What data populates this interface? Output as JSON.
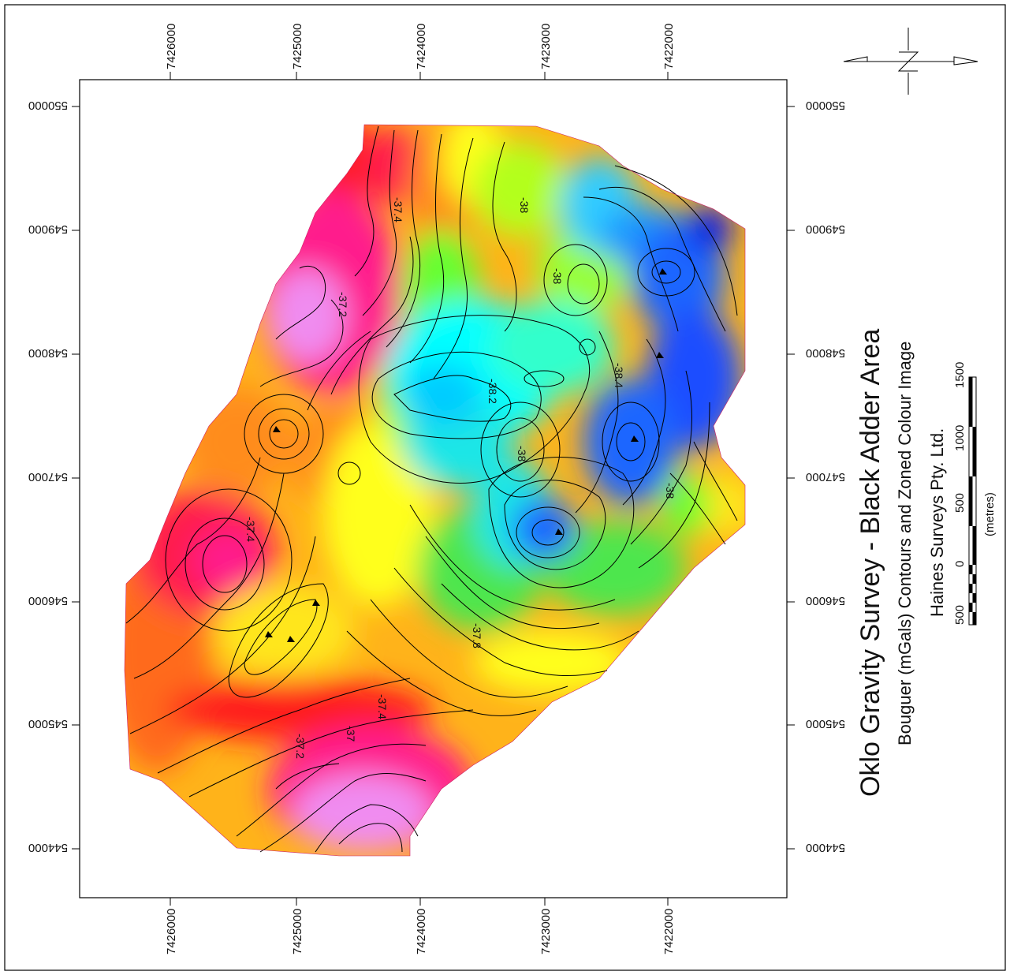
{
  "map": {
    "title": "Oklo Gravity Survey - Black Adder Area",
    "subtitle": "Bouguer (mGals) Contours and Zoned Colour Image",
    "credit": "Haines Surveys Pty. Ltd.",
    "north_symbol": "N",
    "northing_labels": [
      "7426000",
      "7425000",
      "7424000",
      "7423000",
      "7422000"
    ],
    "easting_labels": [
      "550000",
      "549000",
      "548000",
      "547000",
      "546000",
      "545000",
      "544000"
    ],
    "scale_bar": {
      "labels": [
        "500",
        "0",
        "500",
        "1000",
        "1500"
      ],
      "unit": "(metres)"
    },
    "contour_labels": [
      "-37.4",
      "-37.2",
      "-38",
      "-38",
      "-38.2",
      "-38.4",
      "-38",
      "-38",
      "-37.4",
      "-37.8",
      "-37.4",
      "-37.2",
      "-37"
    ],
    "colors": {
      "magenta": "#f08cf0",
      "pink": "#ff1a8c",
      "red": "#ff1a1a",
      "orange": "#ff8c1a",
      "yellow": "#ffff1a",
      "green": "#4de64d",
      "cyan": "#00ffff",
      "blue": "#1a66ff",
      "deep_blue": "#0a1ae6"
    }
  }
}
